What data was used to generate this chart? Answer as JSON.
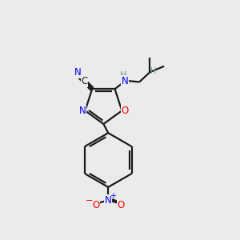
{
  "background_color": "#ebebeb",
  "bond_color": "#1a1a1a",
  "atom_colors": {
    "N": "#0000ff",
    "O": "#ff0000",
    "C": "#1a1a1a",
    "H": "#5a9a9a"
  },
  "figsize": [
    3.0,
    3.0
  ],
  "dpi": 100,
  "lw": 1.6,
  "fs": 8.5
}
